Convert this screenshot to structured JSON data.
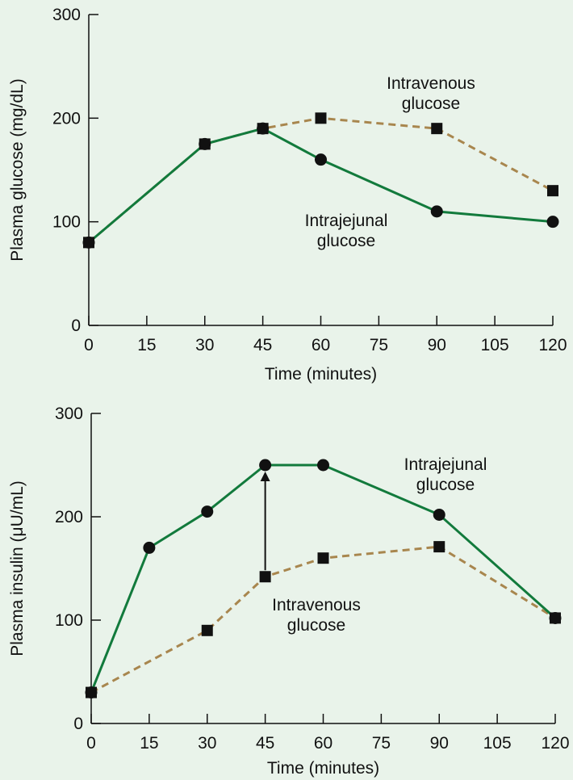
{
  "colors": {
    "background": "#e9f3ea",
    "intrajejunal": "#127a3c",
    "intravenous": "#a8864e",
    "axis": "#111111",
    "marker": "#111111"
  },
  "chart_data": [
    {
      "type": "line",
      "xlabel": "Time (minutes)",
      "ylabel": "Plasma glucose (mg/dL)",
      "xlim": [
        0,
        120
      ],
      "ylim": [
        0,
        300
      ],
      "xticks": [
        0,
        15,
        30,
        45,
        60,
        75,
        90,
        105,
        120
      ],
      "yticks": [
        0,
        100,
        200,
        300
      ],
      "grid": false,
      "series": [
        {
          "key": "intravenous",
          "line_style": "dashed",
          "marker": "square",
          "x": [
            0,
            30,
            45,
            60,
            90,
            120
          ],
          "y": [
            80,
            175,
            190,
            200,
            190,
            130
          ]
        },
        {
          "key": "intrajejunal",
          "line_style": "solid",
          "marker": "circle",
          "x": [
            0,
            30,
            45,
            60,
            90,
            120
          ],
          "y": [
            80,
            175,
            190,
            160,
            110,
            100
          ]
        }
      ],
      "annotations": [
        {
          "text": [
            "Intravenous",
            "glucose"
          ]
        },
        {
          "text": [
            "Intrajejunal",
            "glucose"
          ]
        }
      ]
    },
    {
      "type": "line",
      "xlabel": "Time (minutes)",
      "ylabel": "Plasma insulin (μU/mL)",
      "xlim": [
        0,
        120
      ],
      "ylim": [
        0,
        300
      ],
      "xticks": [
        0,
        15,
        30,
        45,
        60,
        75,
        90,
        105,
        120
      ],
      "yticks": [
        0,
        100,
        200,
        300
      ],
      "grid": false,
      "series": [
        {
          "key": "intrajejunal",
          "line_style": "solid",
          "marker": "circle",
          "x": [
            0,
            15,
            30,
            45,
            60,
            90,
            120
          ],
          "y": [
            30,
            170,
            205,
            250,
            250,
            202,
            102
          ]
        },
        {
          "key": "intravenous",
          "line_style": "dashed",
          "marker": "square",
          "x": [
            0,
            30,
            45,
            60,
            90,
            120
          ],
          "y": [
            30,
            90,
            142,
            160,
            171,
            102
          ]
        }
      ],
      "annotations": [
        {
          "text": [
            "Intrajejunal",
            "glucose"
          ]
        },
        {
          "text": [
            "Intravenous",
            "glucose"
          ]
        }
      ],
      "arrow": {
        "x": 45,
        "from_y": 142,
        "to_y": 250
      }
    }
  ]
}
